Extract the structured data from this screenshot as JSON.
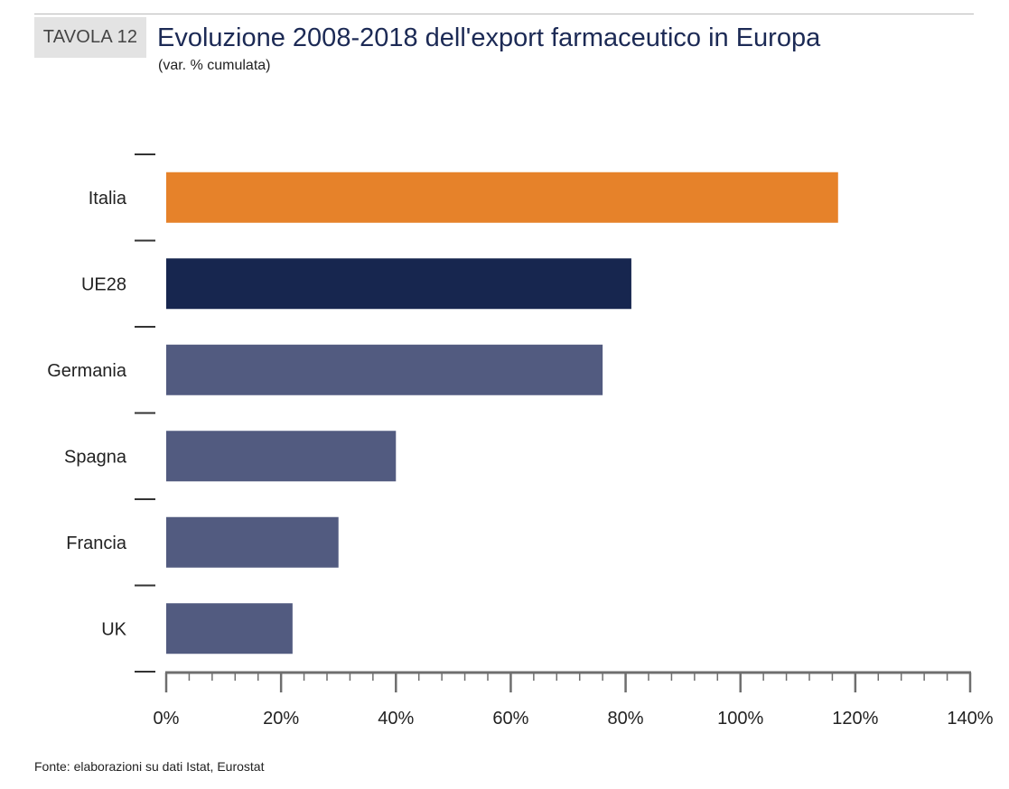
{
  "header": {
    "tag": "TAVOLA 12",
    "title": "Evoluzione 2008-2018 dell'export farmaceutico in Europa",
    "subtitle": "(var. % cumulata)"
  },
  "footer": {
    "source": "Fonte: elaborazioni su dati Istat, Eurostat"
  },
  "chart_data": {
    "type": "bar",
    "orientation": "horizontal",
    "title": "Evoluzione 2008-2018 dell'export farmaceutico in Europa",
    "subtitle": "(var. % cumulata)",
    "categories": [
      "Italia",
      "UE28",
      "Germania",
      "Spagna",
      "Francia",
      "UK"
    ],
    "values": [
      117,
      81,
      76,
      40,
      30,
      22
    ],
    "bar_colors": [
      "#e6822a",
      "#17264f",
      "#525b80",
      "#525b80",
      "#525b80",
      "#525b80"
    ],
    "x_ticks": [
      0,
      20,
      40,
      60,
      80,
      100,
      120,
      140
    ],
    "x_tick_labels": [
      "0%",
      "20%",
      "40%",
      "60%",
      "80%",
      "100%",
      "120%",
      "140%"
    ],
    "xlim": [
      0,
      140
    ],
    "xlabel": "",
    "ylabel": "",
    "grid": false,
    "legend": "none"
  }
}
